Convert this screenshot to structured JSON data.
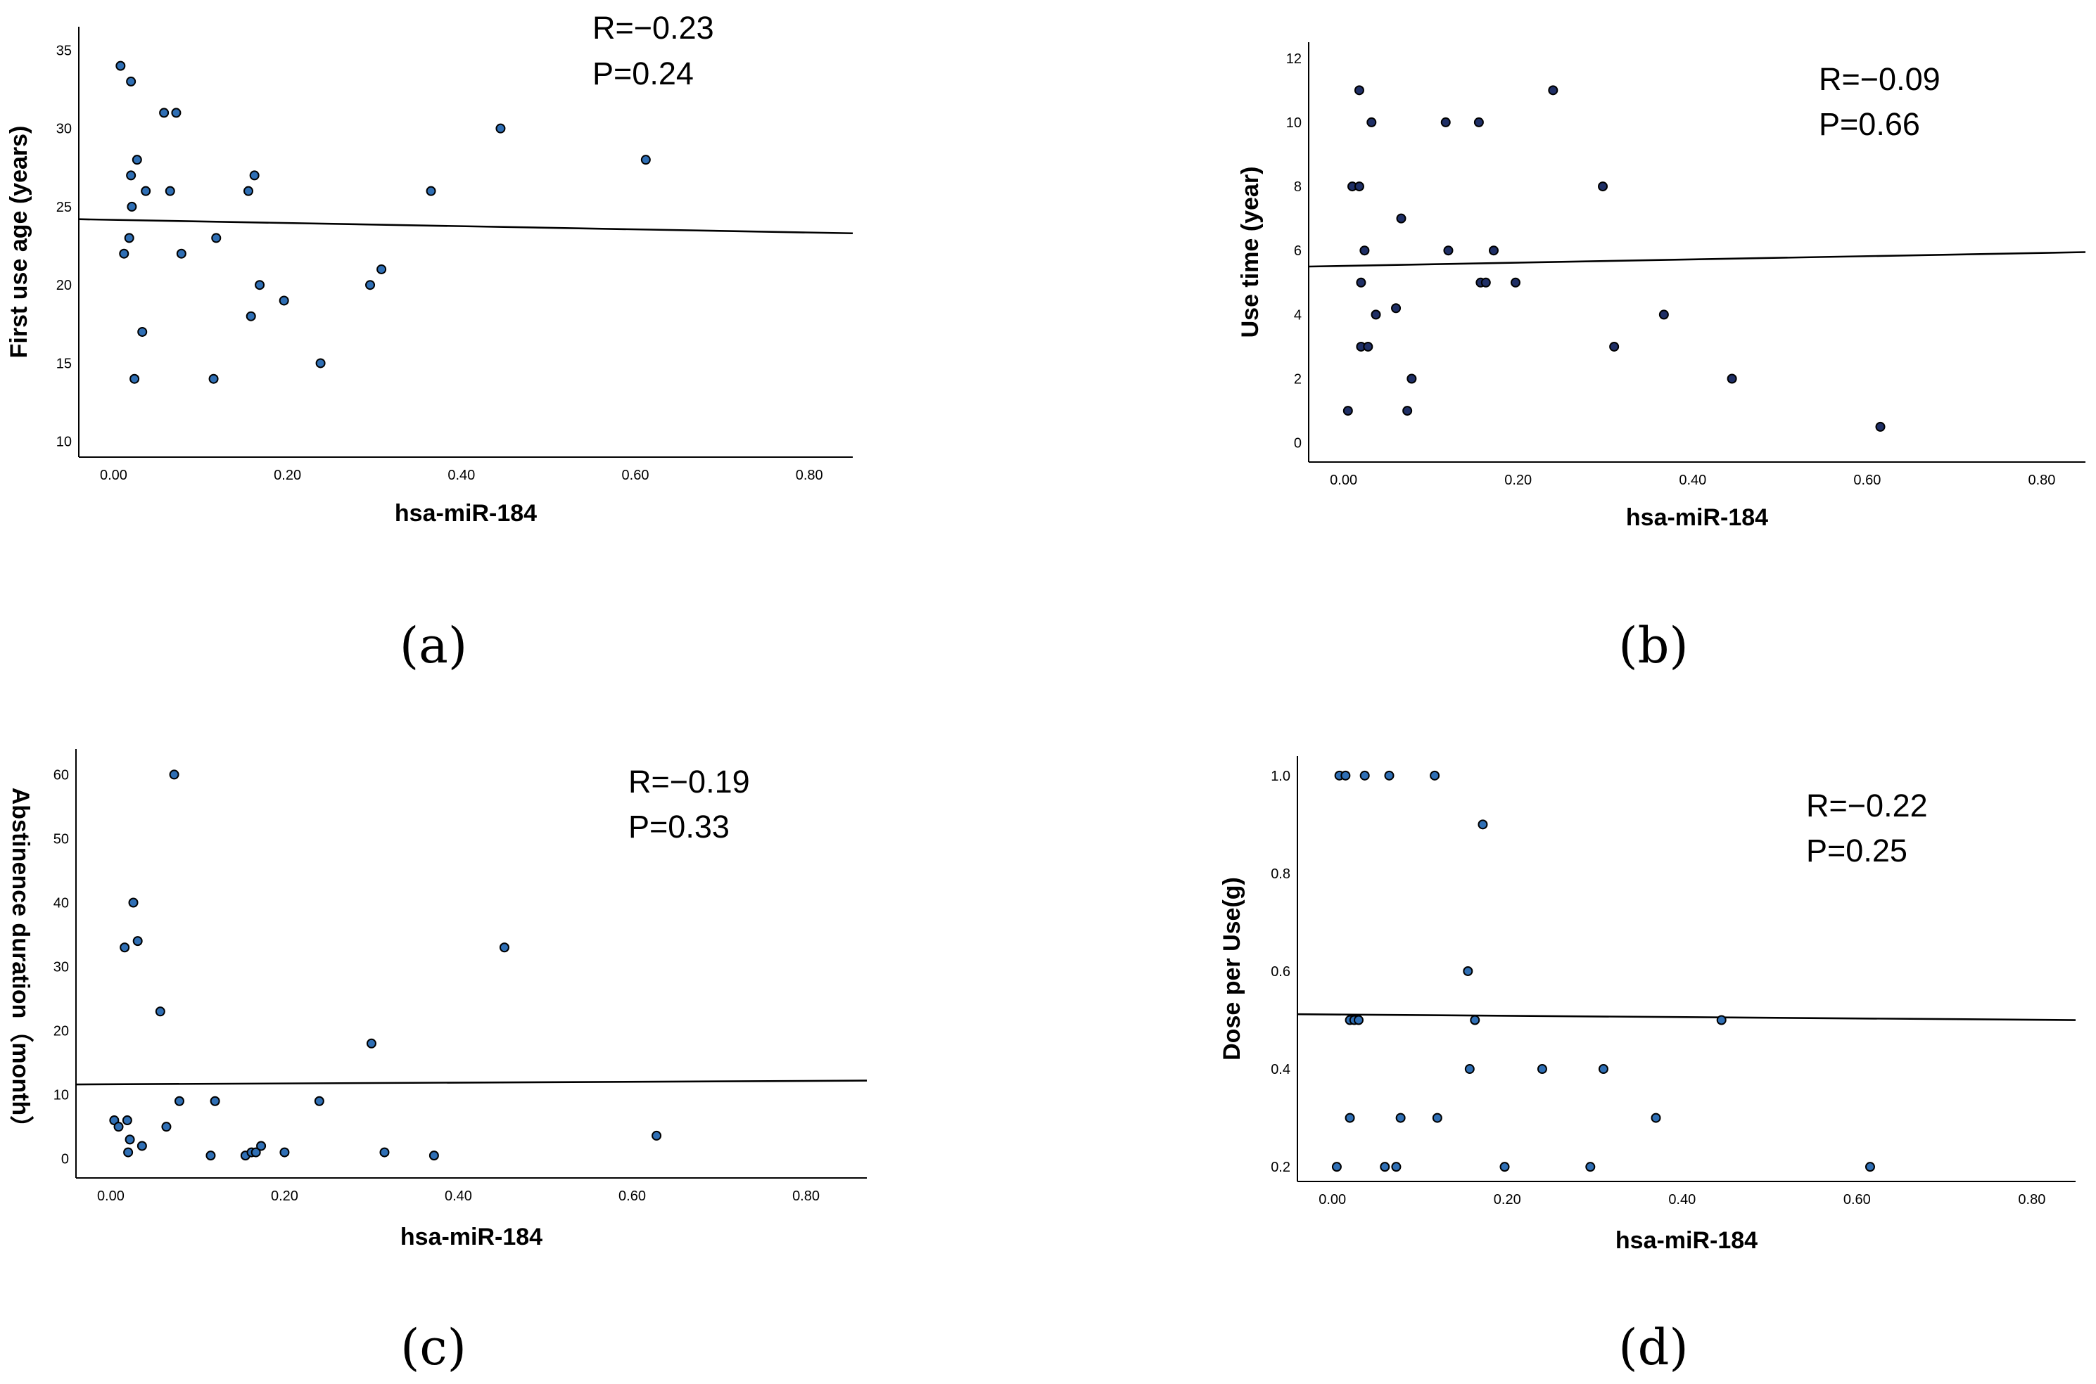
{
  "figure": {
    "point_color": "#2f6fb5",
    "point_color_dark": "#1f2f66",
    "line_color": "#000000"
  },
  "chart_data": [
    {
      "id": "a",
      "type": "scatter",
      "panel_label": "(a)",
      "xlabel": "hsa-miR-184",
      "ylabel": "First use age (years)",
      "xlim": [
        -0.04,
        0.85
      ],
      "ylim": [
        9.0,
        36.5
      ],
      "xticks": [
        0,
        0.2,
        0.4,
        0.6,
        0.8
      ],
      "xtick_labels": [
        "0.00",
        "0.20",
        "0.40",
        "0.60",
        "0.80"
      ],
      "yticks": [
        10,
        15,
        20,
        25,
        30,
        35
      ],
      "ytick_labels": [
        "10",
        "15",
        "20",
        "25",
        "30",
        "35"
      ],
      "annotation": [
        "R=−0.23",
        "P=0.24"
      ],
      "fit_line": {
        "x": [
          -0.04,
          0.85
        ],
        "y": [
          24.2,
          23.3
        ]
      },
      "point_style": "light",
      "points": [
        {
          "x": 0.008,
          "y": 34.0
        },
        {
          "x": 0.02,
          "y": 33.0
        },
        {
          "x": 0.058,
          "y": 31.0
        },
        {
          "x": 0.072,
          "y": 31.0
        },
        {
          "x": 0.027,
          "y": 28.0
        },
        {
          "x": 0.02,
          "y": 27.0
        },
        {
          "x": 0.037,
          "y": 26.0
        },
        {
          "x": 0.065,
          "y": 26.0
        },
        {
          "x": 0.021,
          "y": 25.0
        },
        {
          "x": 0.018,
          "y": 23.0
        },
        {
          "x": 0.012,
          "y": 22.0
        },
        {
          "x": 0.078,
          "y": 22.0
        },
        {
          "x": 0.033,
          "y": 17.0
        },
        {
          "x": 0.024,
          "y": 14.0
        },
        {
          "x": 0.118,
          "y": 23.0
        },
        {
          "x": 0.155,
          "y": 26.0
        },
        {
          "x": 0.162,
          "y": 27.0
        },
        {
          "x": 0.168,
          "y": 20.0
        },
        {
          "x": 0.158,
          "y": 18.0
        },
        {
          "x": 0.196,
          "y": 19.0
        },
        {
          "x": 0.115,
          "y": 14.0
        },
        {
          "x": 0.238,
          "y": 15.0
        },
        {
          "x": 0.295,
          "y": 20.0
        },
        {
          "x": 0.308,
          "y": 21.0
        },
        {
          "x": 0.365,
          "y": 26.0
        },
        {
          "x": 0.445,
          "y": 30.0
        },
        {
          "x": 0.612,
          "y": 28.0
        }
      ]
    },
    {
      "id": "b",
      "type": "scatter",
      "panel_label": "(b)",
      "xlabel": "hsa-miR-184",
      "ylabel": "Use time (year)",
      "xlim": [
        -0.04,
        0.85
      ],
      "ylim": [
        -0.6,
        12.5
      ],
      "xticks": [
        0,
        0.2,
        0.4,
        0.6,
        0.8
      ],
      "xtick_labels": [
        "0.00",
        "0.20",
        "0.40",
        "0.60",
        "0.80"
      ],
      "yticks": [
        0,
        2,
        4,
        6,
        8,
        10,
        12
      ],
      "ytick_labels": [
        "0",
        "2",
        "4",
        "6",
        "8",
        "10",
        "12"
      ],
      "annotation": [
        "R=−0.09",
        "P=0.66"
      ],
      "fit_line": {
        "x": [
          -0.04,
          0.85
        ],
        "y": [
          5.5,
          5.95
        ]
      },
      "point_style": "dark",
      "points": [
        {
          "x": 0.018,
          "y": 11.0
        },
        {
          "x": 0.032,
          "y": 10.0
        },
        {
          "x": 0.01,
          "y": 8.0
        },
        {
          "x": 0.018,
          "y": 8.0
        },
        {
          "x": 0.066,
          "y": 7.0
        },
        {
          "x": 0.024,
          "y": 6.0
        },
        {
          "x": 0.02,
          "y": 5.0
        },
        {
          "x": 0.037,
          "y": 4.0
        },
        {
          "x": 0.06,
          "y": 4.2
        },
        {
          "x": 0.02,
          "y": 3.0
        },
        {
          "x": 0.028,
          "y": 3.0
        },
        {
          "x": 0.078,
          "y": 2.0
        },
        {
          "x": 0.005,
          "y": 1.0
        },
        {
          "x": 0.073,
          "y": 1.0
        },
        {
          "x": 0.117,
          "y": 10.0
        },
        {
          "x": 0.155,
          "y": 10.0
        },
        {
          "x": 0.12,
          "y": 6.0
        },
        {
          "x": 0.172,
          "y": 6.0
        },
        {
          "x": 0.157,
          "y": 5.0
        },
        {
          "x": 0.163,
          "y": 5.0
        },
        {
          "x": 0.197,
          "y": 5.0
        },
        {
          "x": 0.24,
          "y": 11.0
        },
        {
          "x": 0.297,
          "y": 8.0
        },
        {
          "x": 0.31,
          "y": 3.0
        },
        {
          "x": 0.367,
          "y": 4.0
        },
        {
          "x": 0.445,
          "y": 2.0
        },
        {
          "x": 0.615,
          "y": 0.5
        }
      ]
    },
    {
      "id": "c",
      "type": "scatter",
      "panel_label": "(c)",
      "xlabel": "hsa-miR-184",
      "ylabel": "Abstinence duration（month）",
      "xlim": [
        -0.04,
        0.87
      ],
      "ylim": [
        -3.0,
        64.0
      ],
      "xticks": [
        0,
        0.2,
        0.4,
        0.6,
        0.8
      ],
      "xtick_labels": [
        "0.00",
        "0.20",
        "0.40",
        "0.60",
        "0.80"
      ],
      "yticks": [
        0,
        10,
        20,
        30,
        40,
        50,
        60
      ],
      "ytick_labels": [
        "0",
        "10",
        "20",
        "30",
        "40",
        "50",
        "60"
      ],
      "annotation": [
        "R=−0.19",
        "P=0.33"
      ],
      "fit_line": {
        "x": [
          -0.04,
          0.87
        ],
        "y": [
          11.6,
          12.2
        ]
      },
      "point_style": "light",
      "points": [
        {
          "x": 0.073,
          "y": 60.0
        },
        {
          "x": 0.026,
          "y": 40.0
        },
        {
          "x": 0.031,
          "y": 34.0
        },
        {
          "x": 0.016,
          "y": 33.0
        },
        {
          "x": 0.057,
          "y": 23.0
        },
        {
          "x": 0.004,
          "y": 6.0
        },
        {
          "x": 0.019,
          "y": 6.0
        },
        {
          "x": 0.009,
          "y": 5.0
        },
        {
          "x": 0.064,
          "y": 5.0
        },
        {
          "x": 0.022,
          "y": 3.0
        },
        {
          "x": 0.036,
          "y": 2.0
        },
        {
          "x": 0.02,
          "y": 1.0
        },
        {
          "x": 0.079,
          "y": 9.0
        },
        {
          "x": 0.12,
          "y": 9.0
        },
        {
          "x": 0.115,
          "y": 0.5
        },
        {
          "x": 0.155,
          "y": 0.5
        },
        {
          "x": 0.162,
          "y": 1.0
        },
        {
          "x": 0.167,
          "y": 1.0
        },
        {
          "x": 0.173,
          "y": 2.0
        },
        {
          "x": 0.2,
          "y": 1.0
        },
        {
          "x": 0.24,
          "y": 9.0
        },
        {
          "x": 0.3,
          "y": 18.0
        },
        {
          "x": 0.315,
          "y": 1.0
        },
        {
          "x": 0.372,
          "y": 0.5
        },
        {
          "x": 0.453,
          "y": 33.0
        },
        {
          "x": 0.628,
          "y": 3.6
        }
      ]
    },
    {
      "id": "d",
      "type": "scatter",
      "panel_label": "(d)",
      "xlabel": "hsa-miR-184",
      "ylabel": "Dose per Use(g)",
      "xlim": [
        -0.04,
        0.85
      ],
      "ylim": [
        0.17,
        1.04
      ],
      "xticks": [
        0,
        0.2,
        0.4,
        0.6,
        0.8
      ],
      "xtick_labels": [
        "0.00",
        "0.20",
        "0.40",
        "0.60",
        "0.80"
      ],
      "yticks": [
        0.2,
        0.4,
        0.6,
        0.8,
        1.0
      ],
      "ytick_labels": [
        "0.2",
        "0.4",
        "0.6",
        "0.8",
        "1.0"
      ],
      "annotation": [
        "R=−0.22",
        "P=0.25"
      ],
      "fit_line": {
        "x": [
          -0.04,
          0.85
        ],
        "y": [
          0.512,
          0.5
        ]
      },
      "point_style": "light",
      "points": [
        {
          "x": 0.008,
          "y": 1.0
        },
        {
          "x": 0.015,
          "y": 1.0
        },
        {
          "x": 0.037,
          "y": 1.0
        },
        {
          "x": 0.065,
          "y": 1.0
        },
        {
          "x": 0.117,
          "y": 1.0
        },
        {
          "x": 0.172,
          "y": 0.9
        },
        {
          "x": 0.155,
          "y": 0.6
        },
        {
          "x": 0.02,
          "y": 0.5
        },
        {
          "x": 0.025,
          "y": 0.5
        },
        {
          "x": 0.03,
          "y": 0.5
        },
        {
          "x": 0.163,
          "y": 0.5
        },
        {
          "x": 0.445,
          "y": 0.5
        },
        {
          "x": 0.157,
          "y": 0.4
        },
        {
          "x": 0.24,
          "y": 0.4
        },
        {
          "x": 0.31,
          "y": 0.4
        },
        {
          "x": 0.02,
          "y": 0.3
        },
        {
          "x": 0.078,
          "y": 0.3
        },
        {
          "x": 0.12,
          "y": 0.3
        },
        {
          "x": 0.37,
          "y": 0.3
        },
        {
          "x": 0.005,
          "y": 0.2
        },
        {
          "x": 0.06,
          "y": 0.2
        },
        {
          "x": 0.073,
          "y": 0.2
        },
        {
          "x": 0.197,
          "y": 0.2
        },
        {
          "x": 0.295,
          "y": 0.2
        },
        {
          "x": 0.615,
          "y": 0.2
        }
      ]
    }
  ]
}
